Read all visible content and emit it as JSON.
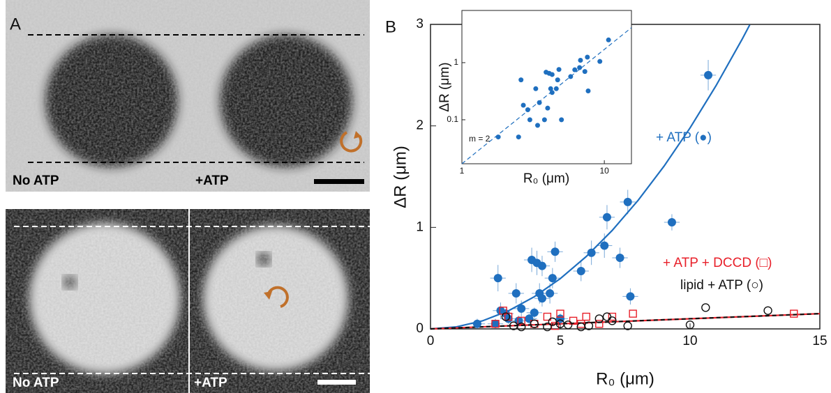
{
  "panel_a": {
    "label": "A",
    "top_labels": [
      "No ATP",
      "+ATP"
    ],
    "bottom_labels": [
      "No ATP",
      "+ATP"
    ]
  },
  "chart_data": [
    {
      "type": "scatter",
      "panel_label": "B",
      "x_label": "R₀ (μm)",
      "y_label": "ΔR (μm)",
      "xlim": [
        0,
        15
      ],
      "ylim": [
        0,
        3
      ],
      "xticks": [
        0,
        5,
        10,
        15
      ],
      "yticks": [
        0,
        1,
        2,
        3
      ],
      "series": [
        {
          "marker": "circle-filled",
          "color": "#1f6fbf",
          "x": [
            1.8,
            2.5,
            2.6,
            2.7,
            2.9,
            3.0,
            3.3,
            3.4,
            3.5,
            3.8,
            3.9,
            4.0,
            4.1,
            4.2,
            4.3,
            4.3,
            4.6,
            4.7,
            4.8,
            5.0,
            5.8,
            6.2,
            6.7,
            6.8,
            7.3,
            7.6,
            7.7,
            9.3,
            10.7
          ],
          "values": [
            0.05,
            0.05,
            0.5,
            0.18,
            0.15,
            0.1,
            0.35,
            0.08,
            0.2,
            0.1,
            0.68,
            0.16,
            0.65,
            0.35,
            0.3,
            0.62,
            0.35,
            0.5,
            0.76,
            0.1,
            0.57,
            0.75,
            0.82,
            1.1,
            0.7,
            1.25,
            0.32,
            1.05,
            2.5
          ],
          "x_errors": [
            0.3,
            0.3,
            0.3,
            0.3,
            0.3,
            0.3,
            0.3,
            0.3,
            0.3,
            0.3,
            0.3,
            0.3,
            0.3,
            0.3,
            0.3,
            0.3,
            0.3,
            0.3,
            0.3,
            0.3,
            0.3,
            0.3,
            0.3,
            0.3,
            0.3,
            0.3,
            0.3,
            0.3,
            0.3
          ],
          "errors": [
            0.05,
            0.05,
            0.13,
            0.08,
            0.05,
            0.05,
            0.1,
            0.05,
            0.08,
            0.05,
            0.12,
            0.05,
            0.12,
            0.1,
            0.08,
            0.1,
            0.1,
            0.1,
            0.1,
            0.05,
            0.1,
            0.12,
            0.12,
            0.12,
            0.1,
            0.12,
            0.08,
            0.08,
            0.15
          ]
        },
        {
          "marker": "square-open",
          "color": "#e8202a",
          "x": [
            2.5,
            2.8,
            3.0,
            3.5,
            4.0,
            4.5,
            5.0,
            5.5,
            6.0,
            6.5,
            7.0,
            7.8,
            14,
            5.8,
            4.8
          ],
          "values": [
            0.05,
            0.18,
            0.12,
            0.08,
            0.05,
            0.12,
            0.15,
            0.08,
            0.12,
            0.05,
            0.12,
            0.15,
            0.15,
            0.05,
            0.03
          ]
        },
        {
          "marker": "circle-open",
          "color": "#111111",
          "x": [
            2.9,
            3.2,
            3.5,
            4.0,
            4.5,
            4.7,
            5.0,
            5.3,
            5.8,
            6.1,
            6.5,
            6.8,
            7.0,
            7.6,
            10.0,
            10.6,
            13.0
          ],
          "values": [
            0.12,
            0.03,
            0.02,
            0.05,
            0.02,
            0.07,
            0.05,
            0.04,
            0.02,
            0.03,
            0.1,
            0.12,
            0.08,
            0.03,
            0.04,
            0.21,
            0.18
          ]
        },
        {
          "marker": "line",
          "color": "#1f6fbf",
          "x": [
            0,
            1,
            2,
            3,
            4,
            5,
            6,
            7,
            8,
            9,
            10,
            11,
            12,
            12.3
          ],
          "values": [
            0,
            0.02,
            0.079,
            0.178,
            0.317,
            0.495,
            0.713,
            0.97,
            1.267,
            1.604,
            1.98,
            2.396,
            2.851,
            2.996
          ]
        },
        {
          "marker": "line",
          "color": "#e8202a",
          "x": [
            0,
            15
          ],
          "values": [
            0,
            0.15
          ]
        },
        {
          "marker": "dashed-line",
          "color": "#111111",
          "x": [
            0,
            15
          ],
          "values": [
            0,
            0.15
          ]
        }
      ],
      "annotations": [
        {
          "text": "+ ATP (●)",
          "color": "#1f6fbf"
        },
        {
          "text": "+ ATP + DCCD (□)",
          "color": "#e8202a"
        },
        {
          "text": "lipid + ATP (○)",
          "color": "#111111"
        }
      ]
    },
    {
      "type": "scatter",
      "log_scale": true,
      "x_label": "R₀ (μm)",
      "y_label": "ΔR (μm)",
      "xlim": [
        1,
        15.5
      ],
      "ylim": [
        0.017,
        8.2
      ],
      "xticks": [
        1,
        10
      ],
      "yticks": [
        0.1,
        1
      ],
      "series": [
        {
          "marker": "circle-filled",
          "color": "#1f6fbf",
          "x": [
            1.8,
            2.5,
            2.6,
            2.7,
            2.9,
            3.0,
            3.3,
            3.4,
            3.5,
            3.8,
            3.9,
            4.0,
            4.1,
            4.2,
            4.3,
            4.3,
            4.6,
            4.7,
            4.8,
            5.0,
            5.8,
            6.2,
            6.7,
            6.8,
            7.3,
            7.6,
            7.7,
            9.3,
            10.7
          ],
          "values": [
            0.05,
            0.05,
            0.5,
            0.18,
            0.15,
            0.1,
            0.35,
            0.08,
            0.2,
            0.1,
            0.68,
            0.16,
            0.65,
            0.35,
            0.3,
            0.62,
            0.35,
            0.5,
            0.76,
            0.1,
            0.57,
            0.75,
            0.82,
            1.1,
            0.7,
            1.25,
            0.32,
            1.05,
            2.5
          ]
        },
        {
          "marker": "dashed-line",
          "color": "#1f6fbf",
          "x": [
            1,
            15.5
          ],
          "values": [
            0.017,
            4.1
          ]
        }
      ],
      "annotations": [
        {
          "text": "m = 2",
          "color": "#111111"
        }
      ]
    }
  ]
}
